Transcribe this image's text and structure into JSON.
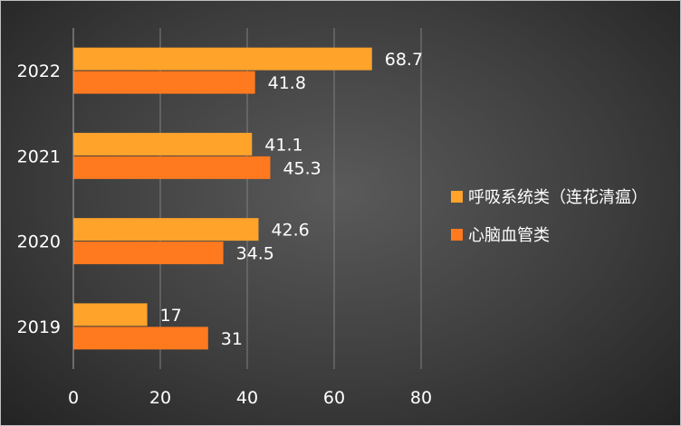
{
  "chart_data": {
    "type": "bar",
    "orientation": "horizontal",
    "categories": [
      "2019",
      "2020",
      "2021",
      "2022"
    ],
    "series": [
      {
        "name": "呼吸系统类（连花清瘟）",
        "color": "#FFA32B",
        "values": [
          17,
          42.6,
          41.1,
          68.7
        ]
      },
      {
        "name": "心脑血管类",
        "color": "#FF7A1F",
        "values": [
          31,
          34.5,
          45.3,
          41.8
        ]
      }
    ],
    "data_labels": {
      "呼吸系统类（连花清瘟）": [
        "17",
        "42.6",
        "41.1",
        "68.7"
      ],
      "心脑血管类": [
        "31",
        "34.5",
        "45.3",
        "41.8"
      ]
    },
    "x_ticks": [
      "0",
      "20",
      "40",
      "60",
      "80"
    ],
    "xlim": [
      0,
      80
    ],
    "grid": true,
    "legend_position": "right",
    "title": "",
    "xlabel": "",
    "ylabel": ""
  }
}
